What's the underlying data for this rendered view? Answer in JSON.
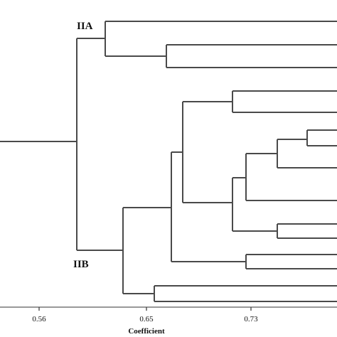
{
  "clusters": {
    "IIA": "IIA",
    "IIB": "IIB"
  },
  "axis": {
    "title": "Coefficient",
    "ticks": [
      "0.56",
      "0.65",
      "0.73"
    ]
  },
  "colors": {
    "line": "#4a4a4a",
    "text": "#111111",
    "background": "#ffffff"
  }
}
